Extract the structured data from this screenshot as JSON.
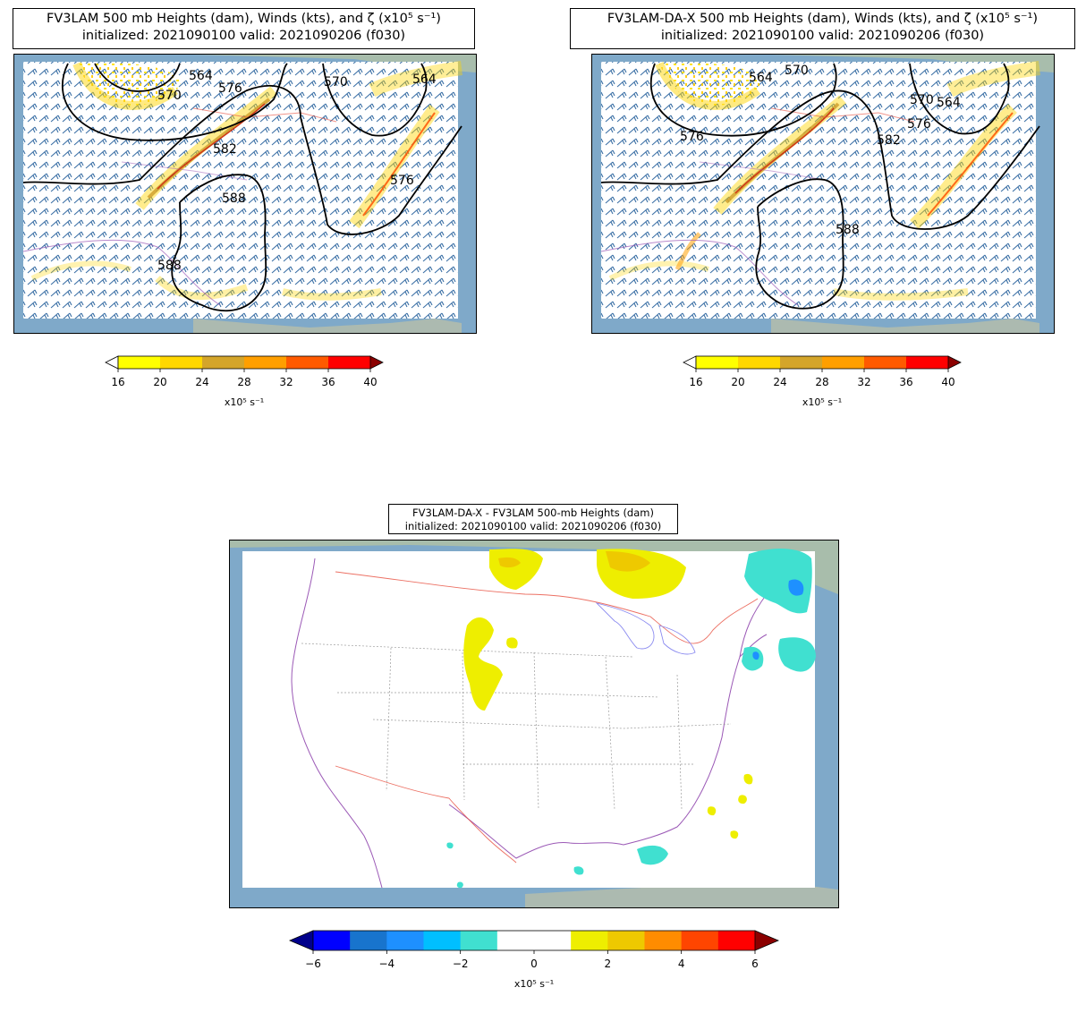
{
  "panels": [
    {
      "title_line1": "FV3LAM 500 mb Heights (dam), Winds (kts), and ζ (x10⁵ s⁻¹)",
      "title_line2": "initialized: 2021090100 valid: 2021090206 (f030)",
      "contour_labels": [
        "570",
        "564",
        "576",
        "570",
        "564",
        "582",
        "576",
        "588",
        "588"
      ]
    },
    {
      "title_line1": "FV3LAM-DA-X 500 mb Heights (dam), Winds (kts), and ζ (x10⁵ s⁻¹)",
      "title_line2": "initialized: 2021090100 valid: 2021090206 (f030)",
      "contour_labels": [
        "564",
        "570",
        "576",
        "570",
        "564",
        "582",
        "576",
        "588"
      ]
    }
  ],
  "vorticity_colorbar": {
    "ticks": [
      "16",
      "20",
      "24",
      "28",
      "32",
      "36",
      "40"
    ],
    "unit_label": "x10⁵ s⁻¹",
    "colors": [
      "#ffff00",
      "#ffd700",
      "#d4a52a",
      "#ff9f00",
      "#ff5a00",
      "#ff0000"
    ],
    "under_color": "#ffffff",
    "over_color": "#8b0000"
  },
  "difference_panel": {
    "title_line1": "FV3LAM-DA-X - FV3LAM 500-mb Heights (dam)",
    "title_line2": "initialized: 2021090100 valid: 2021090206 (f030)"
  },
  "difference_colorbar": {
    "ticks": [
      "−6",
      "−4",
      "−2",
      "0",
      "2",
      "4",
      "6"
    ],
    "unit_label": "x10⁵ s⁻¹",
    "colors": [
      "#0000ff",
      "#1874cd",
      "#1e90ff",
      "#00bfff",
      "#40e0d0",
      "#ffffff",
      "#ffffff",
      "#eeee00",
      "#eec900",
      "#ff8c00",
      "#ff4500",
      "#ff0000"
    ],
    "under_color": "#00008b",
    "over_color": "#8b0000"
  }
}
